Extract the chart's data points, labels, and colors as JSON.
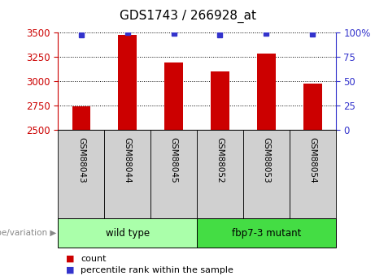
{
  "title": "GDS1743 / 266928_at",
  "samples": [
    "GSM88043",
    "GSM88044",
    "GSM88045",
    "GSM88052",
    "GSM88053",
    "GSM88054"
  ],
  "counts": [
    2740,
    3470,
    3195,
    3100,
    3285,
    2975
  ],
  "percentile_ranks": [
    97,
    100,
    99,
    97,
    99,
    98
  ],
  "ylim": [
    2500,
    3500
  ],
  "yticks": [
    2500,
    2750,
    3000,
    3250,
    3500
  ],
  "right_yticks": [
    0,
    25,
    50,
    75,
    100
  ],
  "bar_color": "#cc0000",
  "dot_color": "#3333cc",
  "left_ycolor": "#cc0000",
  "right_ycolor": "#3333cc",
  "groups": [
    {
      "label": "wild type",
      "start": 0,
      "end": 3,
      "color": "#aaffaa"
    },
    {
      "label": "fbp7-3 mutant",
      "start": 3,
      "end": 6,
      "color": "#44dd44"
    }
  ],
  "genotype_label": "genotype/variation",
  "legend_count_label": "count",
  "legend_percentile_label": "percentile rank within the sample",
  "sample_bg_color": "#d0d0d0",
  "bar_width": 0.4
}
